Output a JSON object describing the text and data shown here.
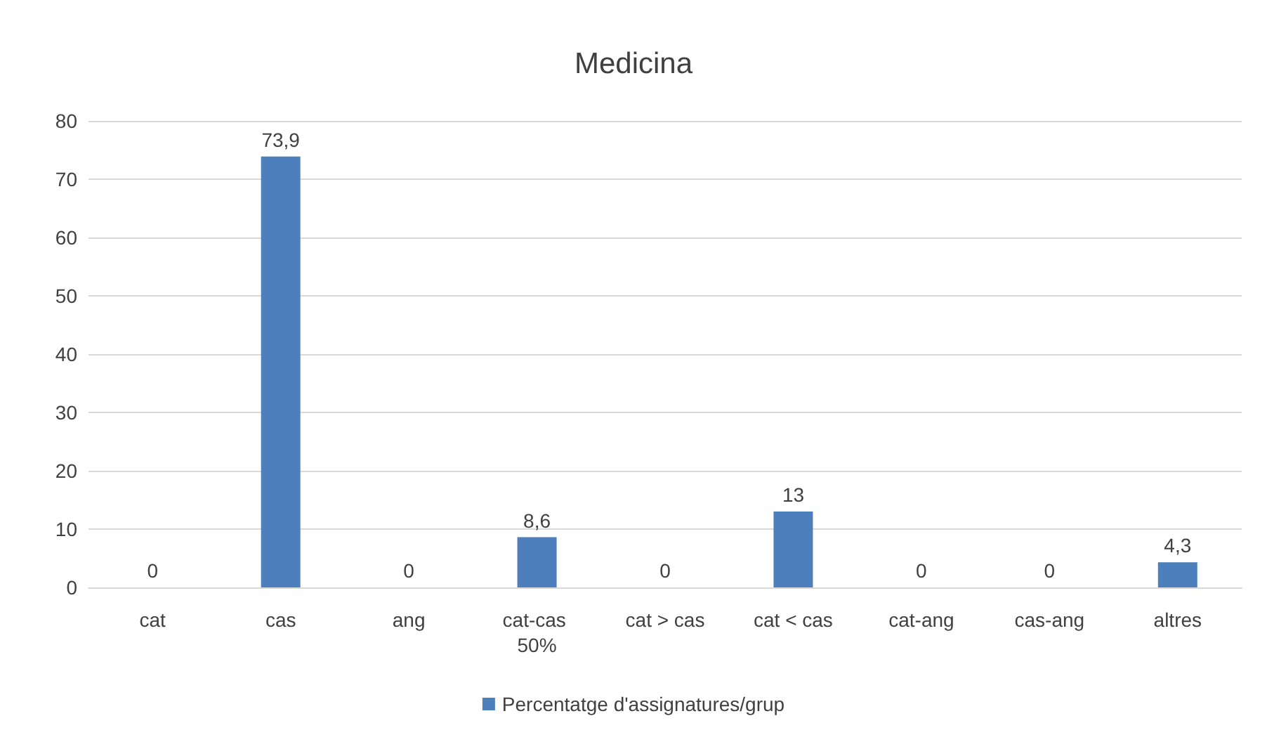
{
  "chart_data": {
    "type": "bar",
    "title": "Medicina",
    "categories": [
      "cat",
      "cas",
      "ang",
      "cat-cas 50%",
      "cat > cas",
      "cat < cas",
      "cat-ang",
      "cas-ang",
      "altres"
    ],
    "series": [
      {
        "name": "Percentatge d'assignatures/grup",
        "color": "#4e7fbd",
        "values": [
          0,
          73.9,
          0,
          8.6,
          0,
          13,
          0,
          0,
          4.3
        ],
        "value_labels": [
          "0",
          "73,9",
          "0",
          "8,6",
          "0",
          "13",
          "0",
          "0",
          "4,3"
        ]
      }
    ],
    "ylim": [
      0,
      80
    ],
    "yticks": [
      0,
      10,
      20,
      30,
      40,
      50,
      60,
      70,
      80
    ],
    "grid": "y",
    "legend": "bottom"
  }
}
